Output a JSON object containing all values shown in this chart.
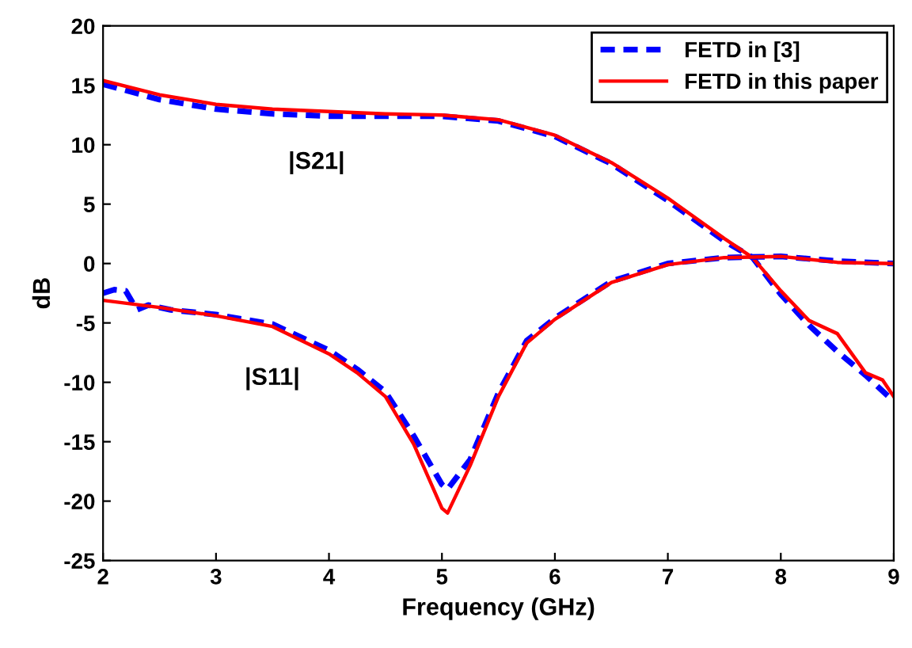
{
  "chart_data": {
    "type": "line",
    "xlabel": "Frequency (GHz)",
    "ylabel": "dB",
    "xlim": [
      2,
      9
    ],
    "ylim": [
      -25,
      20
    ],
    "xticks": [
      2,
      3,
      4,
      5,
      6,
      7,
      8,
      9
    ],
    "yticks": [
      -25,
      -20,
      -15,
      -10,
      -5,
      0,
      5,
      10,
      15,
      20
    ],
    "grid": false,
    "legend": "top right",
    "marker": "none",
    "annotations": [
      "|S21|",
      "|S11|"
    ],
    "series": [
      {
        "name": "FETD in [3]",
        "color": "#0000ff",
        "line_style": "dashed",
        "x": [
          2,
          2.5,
          3,
          3.5,
          4,
          4.5,
          5,
          5.5,
          6,
          6.5,
          7,
          7.5,
          7.75,
          8,
          8.25,
          8.5,
          8.75,
          9
        ],
        "values": [
          15.1,
          13.8,
          13.0,
          12.6,
          12.4,
          12.4,
          12.4,
          12.0,
          10.7,
          8.4,
          5.3,
          1.9,
          0.5,
          -2.6,
          -5.2,
          -7.4,
          -9.4,
          -11.6
        ]
      },
      {
        "name": "FETD in this paper",
        "color": "#ff0000",
        "line_style": "solid",
        "x": [
          2,
          2.5,
          3,
          3.5,
          4,
          4.5,
          5,
          5.5,
          6,
          6.5,
          7,
          7.5,
          7.75,
          8,
          8.25,
          8.5,
          8.75,
          8.9,
          9
        ],
        "values": [
          15.4,
          14.2,
          13.4,
          13.0,
          12.8,
          12.6,
          12.5,
          12.1,
          10.8,
          8.5,
          5.5,
          2.1,
          0.5,
          -2.3,
          -4.8,
          -5.9,
          -9.2,
          -9.8,
          -11.2
        ]
      },
      {
        "color": "#0000ff",
        "line_style": "dashed",
        "x": [
          2,
          2.1,
          2.2,
          2.3,
          2.4,
          2.6,
          3,
          3.5,
          4,
          4.25,
          4.5,
          4.75,
          5,
          5.05,
          5.25,
          5.5,
          5.75,
          6,
          6.5,
          7,
          7.5,
          8,
          8.5,
          9
        ],
        "values": [
          -2.5,
          -2.2,
          -2.3,
          -3.9,
          -3.5,
          -3.9,
          -4.3,
          -5.1,
          -7.3,
          -8.9,
          -10.8,
          -14.5,
          -18.6,
          -19.0,
          -16.5,
          -10.9,
          -6.5,
          -4.6,
          -1.5,
          0,
          0.5,
          0.6,
          0.2,
          0
        ]
      },
      {
        "color": "#ff0000",
        "line_style": "solid",
        "x": [
          2,
          2.5,
          3,
          3.5,
          4,
          4.25,
          4.5,
          4.75,
          5,
          5.05,
          5.25,
          5.5,
          5.75,
          6,
          6.5,
          7,
          7.5,
          8,
          8.5,
          9
        ],
        "values": [
          -3.1,
          -3.7,
          -4.4,
          -5.3,
          -7.6,
          -9.2,
          -11.2,
          -15.2,
          -20.6,
          -21.0,
          -17.0,
          -11.2,
          -6.7,
          -4.7,
          -1.6,
          -0.1,
          0.5,
          0.6,
          0.1,
          0
        ]
      }
    ]
  }
}
